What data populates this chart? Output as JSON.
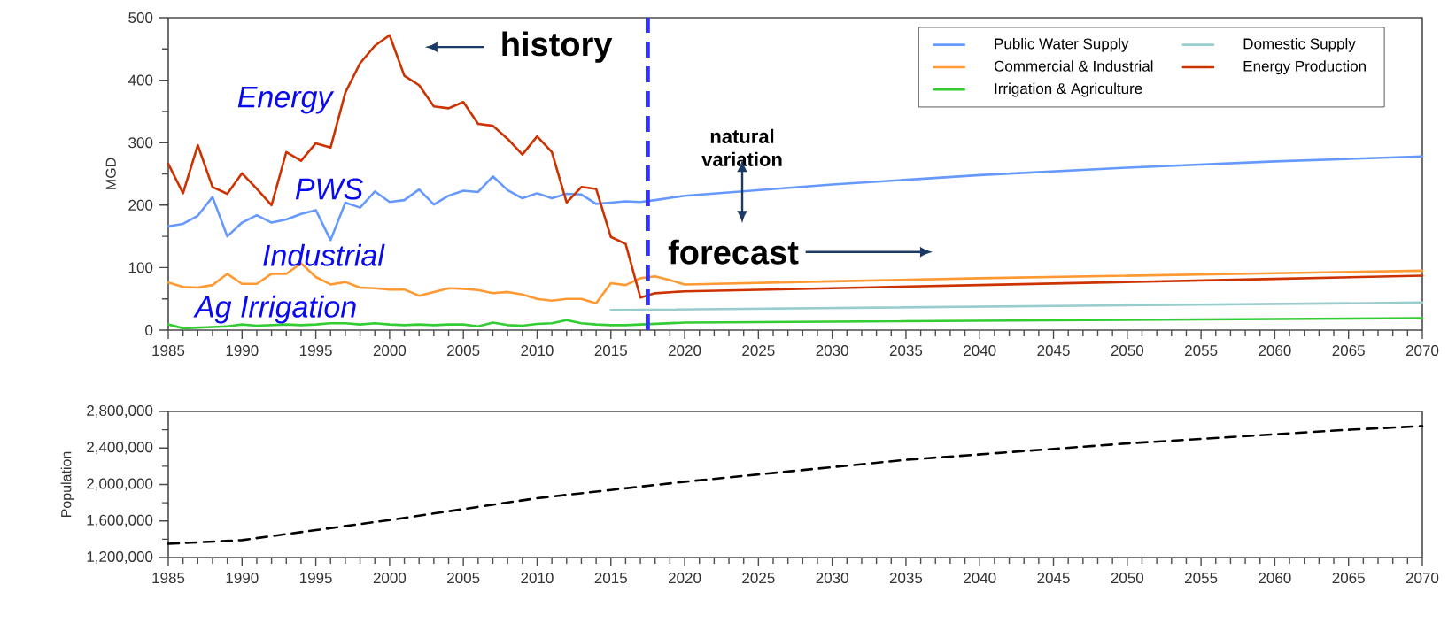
{
  "chart_data": [
    {
      "type": "line",
      "ylabel": "MGD",
      "xlim": [
        1985,
        2070
      ],
      "xticks": [
        1985,
        1990,
        1995,
        2000,
        2005,
        2010,
        2015,
        2020,
        2025,
        2030,
        2035,
        2040,
        2045,
        2050,
        2055,
        2060,
        2065,
        2070
      ],
      "ylim": [
        0,
        500
      ],
      "yticks": [
        0,
        100,
        200,
        300,
        400,
        500
      ],
      "legend": "top right",
      "marker": "none",
      "line_style": "solid",
      "series": [
        {
          "name": "Public Water Supply",
          "color": "#6699ff",
          "x": [
            1985,
            1986,
            1987,
            1988,
            1989,
            1990,
            1991,
            1992,
            1993,
            1994,
            1995,
            1996,
            1997,
            1998,
            1999,
            2000,
            2001,
            2002,
            2003,
            2004,
            2005,
            2006,
            2007,
            2008,
            2009,
            2010,
            2011,
            2012,
            2013,
            2014,
            2015,
            2016,
            2017,
            2018,
            2020,
            2030,
            2040,
            2050,
            2060,
            2070
          ],
          "values": [
            166,
            170,
            183,
            213,
            150,
            172,
            184,
            172,
            177,
            186,
            192,
            144,
            204,
            196,
            222,
            205,
            208,
            225,
            201,
            215,
            223,
            221,
            246,
            224,
            211,
            219,
            211,
            218,
            217,
            202,
            204,
            206,
            205,
            208,
            215,
            233,
            248,
            260,
            270,
            278
          ]
        },
        {
          "name": "Domestic Supply",
          "color": "#99cccc",
          "x": [
            2015,
            2070
          ],
          "values": [
            32,
            44
          ]
        },
        {
          "name": "Commercial & Industrial",
          "color": "#ff9933",
          "x": [
            1985,
            1986,
            1987,
            1988,
            1989,
            1990,
            1991,
            1992,
            1993,
            1994,
            1995,
            1996,
            1997,
            1998,
            1999,
            2000,
            2001,
            2002,
            2003,
            2004,
            2005,
            2006,
            2007,
            2008,
            2009,
            2010,
            2011,
            2012,
            2013,
            2014,
            2015,
            2016,
            2017,
            2018,
            2019,
            2020,
            2030,
            2040,
            2050,
            2060,
            2070
          ],
          "values": [
            76,
            69,
            68,
            72,
            90,
            74,
            74,
            90,
            90,
            107,
            85,
            73,
            77,
            68,
            67,
            65,
            65,
            55,
            61,
            67,
            66,
            64,
            59,
            61,
            57,
            50,
            47,
            50,
            50,
            43,
            75,
            72,
            83,
            86,
            80,
            73,
            78,
            83,
            87,
            91,
            95
          ]
        },
        {
          "name": "Energy Production",
          "color": "#cc3300",
          "x": [
            1985,
            1986,
            1987,
            1988,
            1989,
            1990,
            1991,
            1992,
            1993,
            1994,
            1995,
            1996,
            1997,
            1998,
            1999,
            2000,
            2001,
            2002,
            2003,
            2004,
            2005,
            2006,
            2007,
            2008,
            2009,
            2010,
            2011,
            2012,
            2013,
            2014,
            2015,
            2016,
            2017,
            2018,
            2020,
            2030,
            2040,
            2050,
            2060,
            2070
          ],
          "values": [
            266,
            219,
            296,
            229,
            218,
            251,
            226,
            200,
            285,
            271,
            299,
            292,
            380,
            427,
            455,
            472,
            407,
            392,
            358,
            355,
            365,
            330,
            327,
            306,
            281,
            310,
            285,
            204,
            229,
            226,
            149,
            138,
            52,
            59,
            62,
            67,
            72,
            77,
            82,
            87
          ]
        },
        {
          "name": "Irrigation & Agriculture",
          "color": "#33cc33",
          "x": [
            1985,
            1986,
            1987,
            1988,
            1989,
            1990,
            1991,
            1992,
            1993,
            1994,
            1995,
            1996,
            1997,
            1998,
            1999,
            2000,
            2001,
            2002,
            2003,
            2004,
            2005,
            2006,
            2007,
            2008,
            2009,
            2010,
            2011,
            2012,
            2013,
            2014,
            2015,
            2016,
            2017,
            2020,
            2070
          ],
          "values": [
            9,
            3,
            4,
            5,
            6,
            9,
            7,
            8,
            9,
            8,
            9,
            11,
            11,
            9,
            11,
            9,
            8,
            9,
            8,
            9,
            9,
            6,
            12,
            8,
            7,
            10,
            11,
            16,
            11,
            9,
            8,
            8,
            9,
            12,
            19
          ]
        }
      ],
      "ref_lines": [
        {
          "axis": "x",
          "value": 2017.5,
          "color": "#3333ff",
          "line_style": "dashed"
        }
      ],
      "annotations": [
        "Energy",
        "PWS",
        "Industrial",
        "Ag Irrigation",
        "history",
        "forecast",
        "natural variation"
      ]
    },
    {
      "type": "line",
      "ylabel": "Population",
      "xlim": [
        1985,
        2070
      ],
      "xticks": [
        1985,
        1990,
        1995,
        2000,
        2005,
        2010,
        2015,
        2020,
        2025,
        2030,
        2035,
        2040,
        2045,
        2050,
        2055,
        2060,
        2065,
        2070
      ],
      "ylim": [
        1200000,
        2800000
      ],
      "yticks": [
        {
          "value": 1200000,
          "label": "1,200,000"
        },
        {
          "value": 1600000,
          "label": "1,600,000"
        },
        {
          "value": 2000000,
          "label": "2,000,000"
        },
        {
          "value": 2400000,
          "label": "2,400,000"
        },
        {
          "value": 2800000,
          "label": "2,800,000"
        }
      ],
      "legend": false,
      "marker": "none",
      "line_style": "dashed",
      "series": [
        {
          "color": "#000000",
          "x": [
            1985,
            1990,
            1995,
            2000,
            2005,
            2010,
            2015,
            2020,
            2025,
            2030,
            2035,
            2040,
            2045,
            2050,
            2055,
            2060,
            2065,
            2070
          ],
          "values": [
            1350000,
            1390000,
            1500000,
            1610000,
            1730000,
            1850000,
            1940000,
            2030000,
            2110000,
            2190000,
            2270000,
            2330000,
            2390000,
            2450000,
            2500000,
            2550000,
            2600000,
            2640000
          ]
        }
      ]
    }
  ]
}
